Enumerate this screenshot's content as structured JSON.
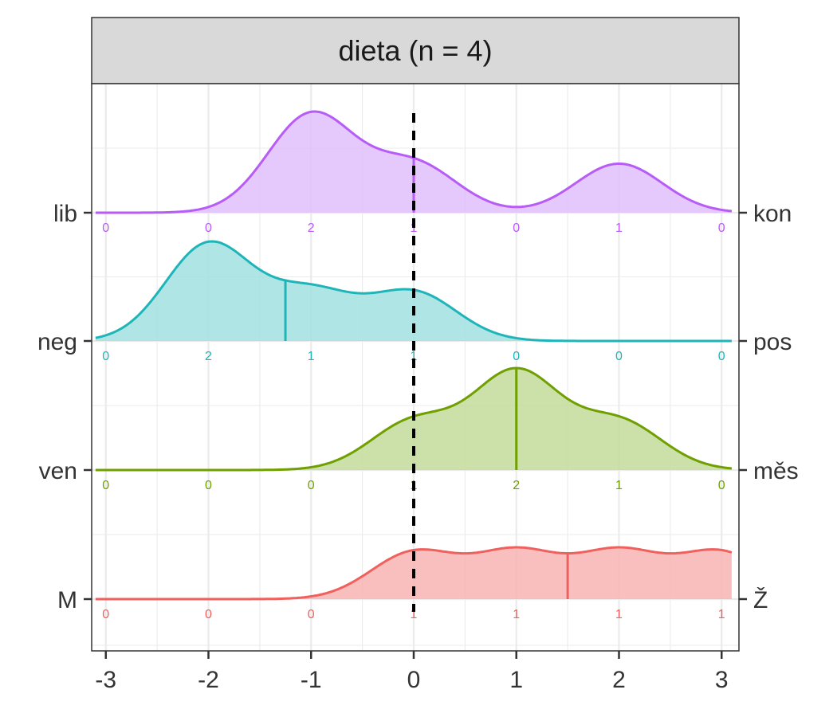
{
  "chart_data": {
    "type": "ridgeline",
    "panel_title": "dieta (n = 4)",
    "xlim": [
      -3.1,
      3.1
    ],
    "x_ticks": [
      -3,
      -2,
      -1,
      0,
      1,
      2,
      3
    ],
    "x_tick_labels": [
      "-3",
      "-2",
      "-1",
      "0",
      "1",
      "2",
      "3"
    ],
    "reference_line": 0,
    "grid": true,
    "series": [
      {
        "left_label": "M",
        "right_label": "Ž",
        "color": "#F0605D",
        "fill": "#F8B4B3",
        "counts": [
          0,
          0,
          0,
          1,
          1,
          1,
          1
        ],
        "marker": 1.5
      },
      {
        "left_label": "ven",
        "right_label": "měs",
        "color": "#6FA000",
        "fill": "#C3DA9A",
        "counts": [
          0,
          0,
          0,
          1,
          2,
          1,
          0
        ],
        "marker": 1
      },
      {
        "left_label": "neg",
        "right_label": "pos",
        "color": "#1FB5B8",
        "fill": "#A2E1E2",
        "counts": [
          0,
          2,
          1,
          1,
          0,
          0,
          0
        ],
        "marker": -1.25
      },
      {
        "left_label": "lib",
        "right_label": "kon",
        "color": "#B75CF7",
        "fill": "#E1BEFC",
        "counts": [
          0,
          0,
          2,
          1,
          0,
          1,
          0
        ],
        "marker": 0
      }
    ]
  }
}
